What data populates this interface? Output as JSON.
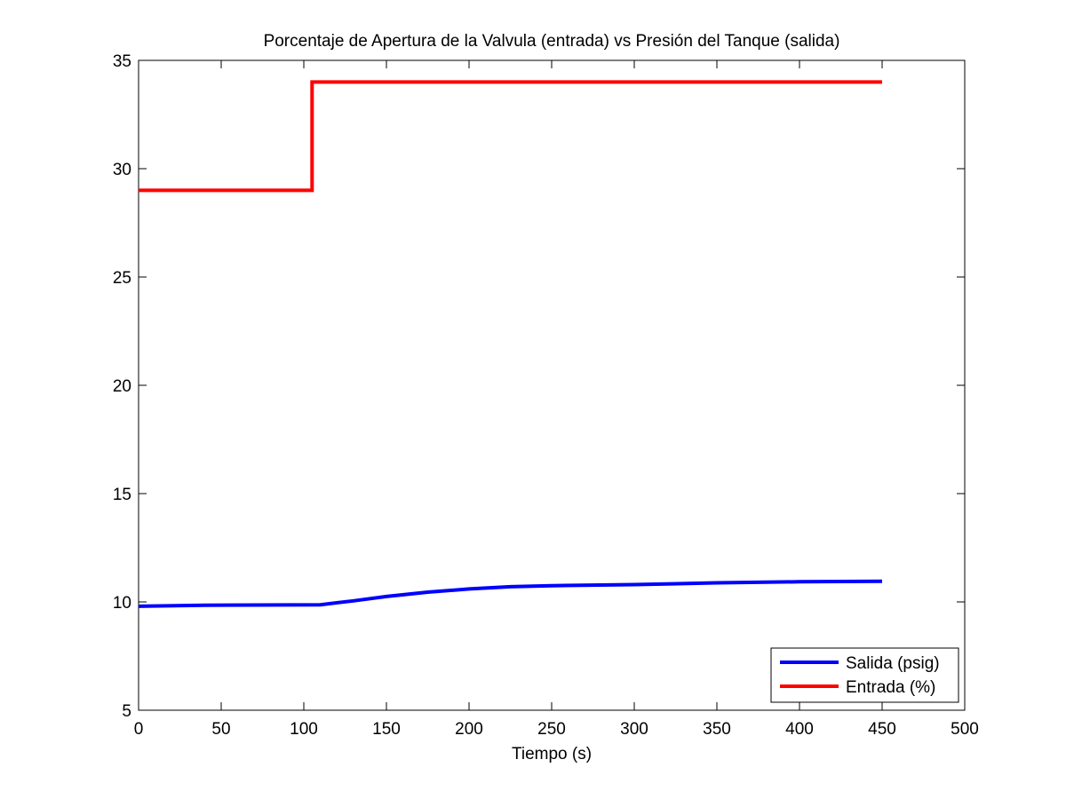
{
  "chart_data": {
    "type": "line",
    "title": "Porcentaje de Apertura de la Valvula (entrada) vs Presión del Tanque (salida)",
    "xlabel": "Tiempo (s)",
    "ylabel": "",
    "xlim": [
      0,
      500
    ],
    "ylim": [
      5,
      35
    ],
    "xticks": [
      0,
      50,
      100,
      150,
      200,
      250,
      300,
      350,
      400,
      450,
      500
    ],
    "yticks": [
      5,
      10,
      15,
      20,
      25,
      30,
      35
    ],
    "grid": false,
    "legend_position": "bottom-right",
    "series": [
      {
        "name": "Salida (psig)",
        "color": "#0000ff",
        "x": [
          0,
          40,
          110,
          130,
          150,
          175,
          200,
          225,
          250,
          300,
          350,
          400,
          450
        ],
        "y": [
          9.8,
          9.85,
          9.87,
          10.05,
          10.25,
          10.45,
          10.6,
          10.7,
          10.75,
          10.8,
          10.88,
          10.93,
          10.95
        ]
      },
      {
        "name": "Entrada (%)",
        "color": "#ff0000",
        "x": [
          0,
          105,
          105,
          450
        ],
        "y": [
          29,
          29,
          34,
          34
        ]
      }
    ]
  }
}
